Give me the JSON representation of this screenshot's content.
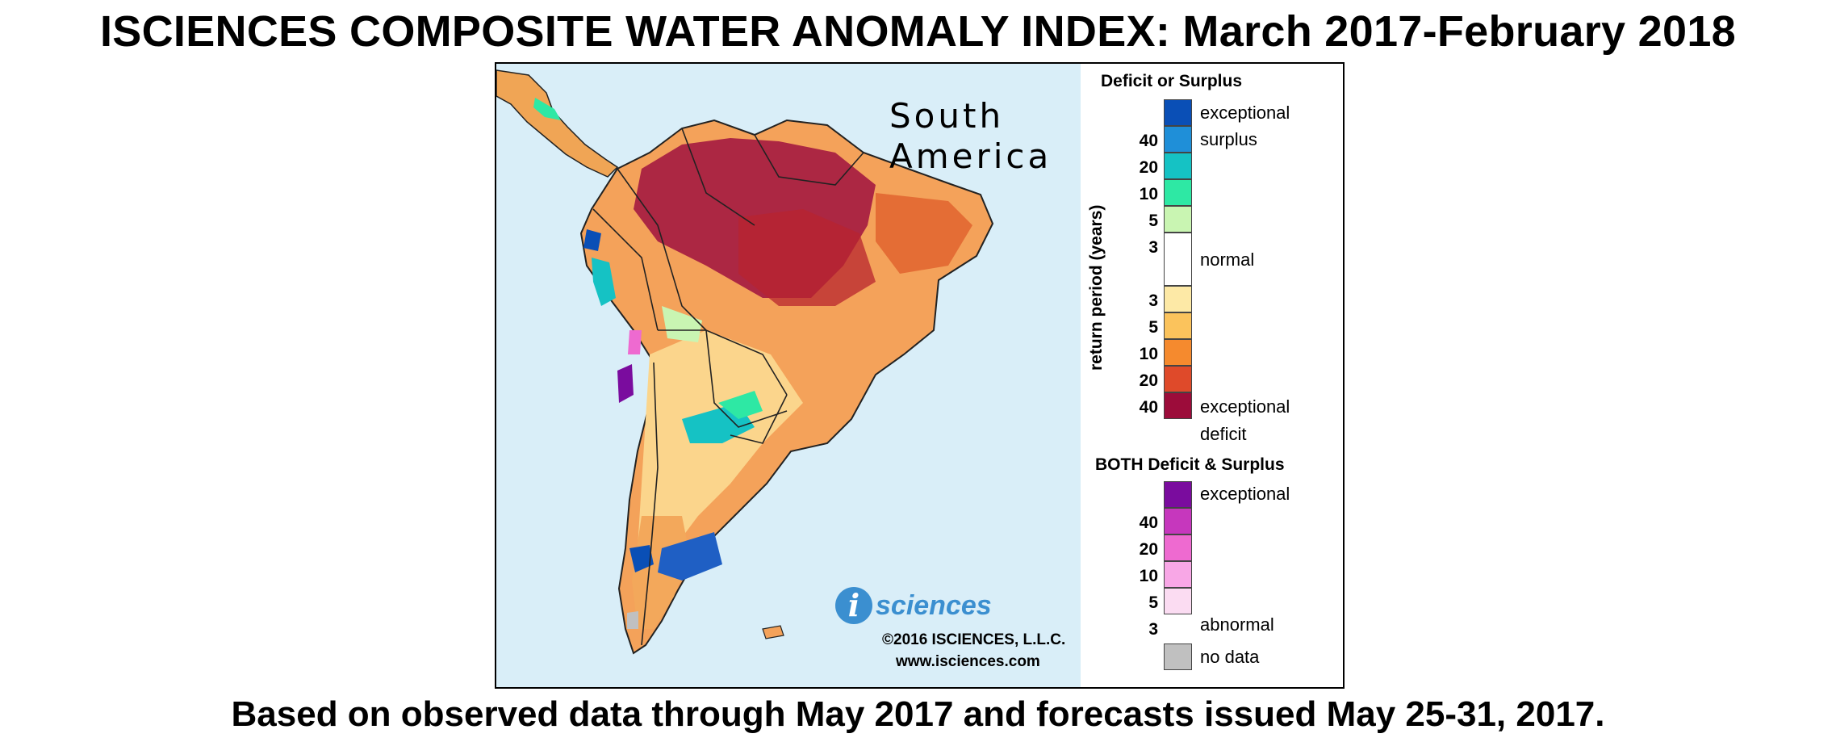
{
  "header": {
    "title": "ISCIENCES COMPOSITE WATER ANOMALY INDEX: March 2017-February 2018"
  },
  "footer": {
    "subtitle": "Based on observed data through May 2017 and forecasts issued May 25-31, 2017."
  },
  "map": {
    "region_line1": "South",
    "region_line2": "America",
    "logo_letter": "i",
    "logo_text": "sciences",
    "copyright": "©2016 ISCIENCES, L.L.C.",
    "website": "www.isciences.com"
  },
  "legend": {
    "deficit_surplus_title": "Deficit or Surplus",
    "axis_label": "return period (years)",
    "surplus_label_1": "exceptional",
    "surplus_label_2": "surplus",
    "normal_label": "normal",
    "deficit_label_1": "exceptional",
    "deficit_label_2": "deficit",
    "surplus_ticks": [
      "40",
      "20",
      "10",
      "5",
      "3"
    ],
    "deficit_ticks": [
      "3",
      "5",
      "10",
      "20",
      "40"
    ],
    "both_title": "BOTH Deficit & Surplus",
    "both_label_top": "exceptional",
    "both_label_bottom": "abnormal",
    "both_ticks": [
      "40",
      "20",
      "10",
      "5",
      "3"
    ],
    "nodata_label": "no data",
    "colors": {
      "surplus": [
        "#0a4fb6",
        "#1f8fd8",
        "#15c2c4",
        "#2ee8a4",
        "#c9f5b2"
      ],
      "normal": "#ffffff",
      "deficit": [
        "#fde9a6",
        "#fbc35c",
        "#f58a2e",
        "#df4a2a",
        "#9c0c3a"
      ],
      "both": [
        "#7a0c9e",
        "#c637bd",
        "#ee6ad0",
        "#f8a7e6",
        "#fbdcf2"
      ],
      "nodata": "#c0c0c0",
      "ocean": "#d9eef8"
    }
  }
}
